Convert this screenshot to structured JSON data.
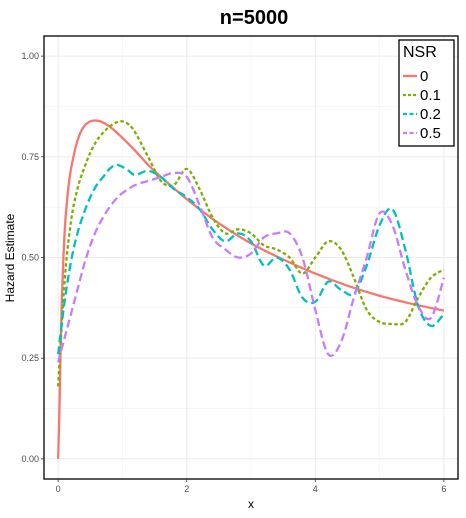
{
  "chart_data": {
    "type": "line",
    "title": "n=5000",
    "xlabel": "x",
    "ylabel": "Hazard Estimate",
    "xlim": [
      -0.22,
      6.22
    ],
    "ylim": [
      -0.05,
      1.05
    ],
    "x_ticks": [
      0,
      2,
      4,
      6
    ],
    "x_tick_labels": [
      "0",
      "2",
      "4",
      "6"
    ],
    "y_ticks": [
      0.0,
      0.25,
      0.5,
      0.75,
      1.0
    ],
    "y_tick_labels": [
      "0.00",
      "0.25",
      "0.50",
      "0.75",
      "1.00"
    ],
    "grid": true,
    "legend": {
      "title": "NSR",
      "position": "top-right"
    },
    "series": [
      {
        "name": "0",
        "color": "#F8766D",
        "dash": "solid",
        "x": [
          0,
          0.02,
          0.05,
          0.1,
          0.15,
          0.2,
          0.3,
          0.4,
          0.5,
          0.6,
          0.7,
          0.8,
          0.9,
          1.0,
          1.2,
          1.4,
          1.6,
          1.8,
          2.0,
          2.2,
          2.5,
          3.0,
          3.5,
          4.0,
          4.5,
          5.0,
          5.5,
          6.0
        ],
        "y": [
          0.0,
          0.12,
          0.35,
          0.56,
          0.66,
          0.72,
          0.79,
          0.825,
          0.838,
          0.84,
          0.835,
          0.825,
          0.812,
          0.797,
          0.765,
          0.73,
          0.7,
          0.672,
          0.645,
          0.62,
          0.585,
          0.535,
          0.495,
          0.46,
          0.43,
          0.405,
          0.385,
          0.368
        ]
      },
      {
        "name": "0.1",
        "color": "#7CAE00",
        "dash": "dotted",
        "x": [
          0,
          0.1,
          0.2,
          0.3,
          0.4,
          0.5,
          0.6,
          0.7,
          0.8,
          0.9,
          1.0,
          1.1,
          1.2,
          1.4,
          1.6,
          1.8,
          2.0,
          2.2,
          2.4,
          2.6,
          2.8,
          3.0,
          3.2,
          3.4,
          3.6,
          3.8,
          4.0,
          4.2,
          4.4,
          4.6,
          4.8,
          5.0,
          5.2,
          5.4,
          5.6,
          5.8,
          6.0
        ],
        "y": [
          0.18,
          0.44,
          0.59,
          0.67,
          0.72,
          0.76,
          0.79,
          0.81,
          0.825,
          0.835,
          0.838,
          0.83,
          0.81,
          0.75,
          0.69,
          0.68,
          0.72,
          0.67,
          0.6,
          0.56,
          0.57,
          0.56,
          0.53,
          0.52,
          0.5,
          0.46,
          0.5,
          0.54,
          0.52,
          0.45,
          0.37,
          0.34,
          0.335,
          0.34,
          0.4,
          0.45,
          0.47
        ]
      },
      {
        "name": "0.2",
        "color": "#00BFC4",
        "dash": "dashed",
        "x": [
          0,
          0.1,
          0.2,
          0.3,
          0.4,
          0.5,
          0.6,
          0.7,
          0.8,
          0.9,
          1.0,
          1.1,
          1.2,
          1.4,
          1.6,
          1.8,
          2.0,
          2.2,
          2.4,
          2.6,
          2.8,
          3.0,
          3.2,
          3.4,
          3.6,
          3.8,
          4.0,
          4.2,
          4.4,
          4.6,
          4.8,
          5.0,
          5.2,
          5.4,
          5.6,
          5.8,
          6.0
        ],
        "y": [
          0.26,
          0.39,
          0.49,
          0.56,
          0.61,
          0.65,
          0.68,
          0.7,
          0.72,
          0.73,
          0.725,
          0.715,
          0.705,
          0.715,
          0.7,
          0.67,
          0.65,
          0.62,
          0.57,
          0.54,
          0.56,
          0.54,
          0.48,
          0.5,
          0.47,
          0.4,
          0.39,
          0.44,
          0.42,
          0.41,
          0.48,
          0.58,
          0.62,
          0.52,
          0.38,
          0.33,
          0.36
        ]
      },
      {
        "name": "0.5",
        "color": "#C77CFF",
        "dash": "dashed",
        "x": [
          0,
          0.1,
          0.2,
          0.3,
          0.4,
          0.5,
          0.6,
          0.7,
          0.8,
          0.9,
          1.0,
          1.2,
          1.4,
          1.6,
          1.8,
          2.0,
          2.2,
          2.4,
          2.6,
          2.8,
          3.0,
          3.2,
          3.4,
          3.6,
          3.8,
          4.0,
          4.2,
          4.4,
          4.6,
          4.8,
          5.0,
          5.2,
          5.4,
          5.6,
          5.8,
          6.0
        ],
        "y": [
          0.24,
          0.3,
          0.36,
          0.42,
          0.48,
          0.53,
          0.57,
          0.6,
          0.625,
          0.645,
          0.66,
          0.68,
          0.69,
          0.7,
          0.71,
          0.7,
          0.63,
          0.55,
          0.52,
          0.5,
          0.51,
          0.55,
          0.56,
          0.56,
          0.5,
          0.37,
          0.26,
          0.29,
          0.4,
          0.5,
          0.61,
          0.58,
          0.47,
          0.38,
          0.35,
          0.45
        ]
      }
    ]
  }
}
